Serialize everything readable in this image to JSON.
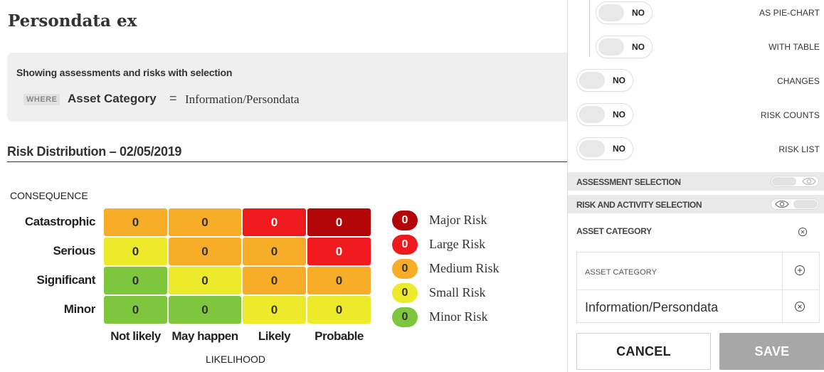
{
  "page": {
    "title": "Persondata ex"
  },
  "selection": {
    "heading": "Showing assessments and risks with selection",
    "where_tag": "WHERE",
    "field": "Asset Category",
    "operator": "=",
    "value": "Information/Persondata"
  },
  "risk_distribution": {
    "title": "Risk Distribution – 02/05/2019",
    "y_axis_label": "CONSEQUENCE",
    "x_axis_label": "LIKELIHOOD",
    "rows": [
      {
        "label": "Catastrophic",
        "cells": [
          {
            "value": "0",
            "level": "medium"
          },
          {
            "value": "0",
            "level": "medium"
          },
          {
            "value": "0",
            "level": "large"
          },
          {
            "value": "0",
            "level": "major"
          }
        ]
      },
      {
        "label": "Serious",
        "cells": [
          {
            "value": "0",
            "level": "small"
          },
          {
            "value": "0",
            "level": "medium"
          },
          {
            "value": "0",
            "level": "medium"
          },
          {
            "value": "0",
            "level": "large"
          }
        ]
      },
      {
        "label": "Significant",
        "cells": [
          {
            "value": "0",
            "level": "minor"
          },
          {
            "value": "0",
            "level": "small"
          },
          {
            "value": "0",
            "level": "medium"
          },
          {
            "value": "0",
            "level": "medium"
          }
        ]
      },
      {
        "label": "Minor",
        "cells": [
          {
            "value": "0",
            "level": "minor"
          },
          {
            "value": "0",
            "level": "minor"
          },
          {
            "value": "0",
            "level": "small"
          },
          {
            "value": "0",
            "level": "small"
          }
        ]
      }
    ],
    "columns": [
      "Not likely",
      "May happen",
      "Likely",
      "Probable"
    ],
    "legend": [
      {
        "count": "0",
        "label": "Major Risk",
        "level": "major"
      },
      {
        "count": "0",
        "label": "Large Risk",
        "level": "large"
      },
      {
        "count": "0",
        "label": "Medium Risk",
        "level": "medium"
      },
      {
        "count": "0",
        "label": "Small Risk",
        "level": "small"
      },
      {
        "count": "0",
        "label": "Minor Risk",
        "level": "minor"
      }
    ],
    "colors": {
      "major": {
        "bg": "#b20608",
        "fg": "#ffffff"
      },
      "large": {
        "bg": "#ee1a1e",
        "fg": "#ffffff"
      },
      "medium": {
        "bg": "#f8ad28",
        "fg": "#333333"
      },
      "small": {
        "bg": "#ecea2a",
        "fg": "#333333"
      },
      "minor": {
        "bg": "#7ec63d",
        "fg": "#333333"
      }
    }
  },
  "panel": {
    "options": [
      {
        "label": "AS PIE-CHART",
        "state": "NO"
      },
      {
        "label": "WITH TABLE",
        "state": "NO"
      },
      {
        "label": "CHANGES",
        "state": "NO"
      },
      {
        "label": "RISK COUNTS",
        "state": "NO"
      },
      {
        "label": "RISK LIST",
        "state": "NO"
      }
    ],
    "assessment_selection": "ASSESSMENT SELECTION",
    "risk_activity_selection": "RISK AND ACTIVITY SELECTION",
    "asset_category_header": "ASSET CATEGORY",
    "asset_box_label": "ASSET CATEGORY",
    "asset_value": "Information/Persondata",
    "cancel_label": "CANCEL",
    "save_label": "SAVE"
  }
}
